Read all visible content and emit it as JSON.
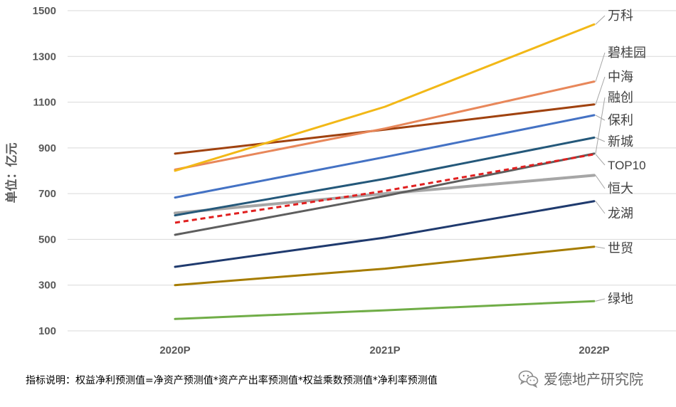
{
  "chart_data": {
    "type": "line",
    "ylabel": "单位：亿元",
    "ylim": [
      100,
      1500
    ],
    "yticks": [
      100,
      300,
      500,
      700,
      900,
      1100,
      1300,
      1500
    ],
    "categories": [
      "2020P",
      "2021P",
      "2022P"
    ],
    "grid": "horizontal",
    "legend": "inline labels at line ends",
    "series": [
      {
        "name": "万科",
        "values": [
          800,
          1080,
          1440
        ],
        "color": "#F2B817",
        "dash": false
      },
      {
        "name": "碧桂园",
        "values": [
          805,
          985,
          1190
        ],
        "color": "#E8875A",
        "dash": false
      },
      {
        "name": "中海",
        "values": [
          875,
          980,
          1090
        ],
        "color": "#A0420F",
        "dash": false
      },
      {
        "name": "融创",
        "values": [
          520,
          690,
          875
        ],
        "color": "#5E5E5E",
        "dash": false
      },
      {
        "name": "保利",
        "values": [
          683,
          860,
          1043
        ],
        "color": "#4472C4",
        "dash": false
      },
      {
        "name": "新城",
        "values": [
          605,
          765,
          945
        ],
        "color": "#24587A",
        "dash": false
      },
      {
        "name": "TOP10",
        "values": [
          573,
          712,
          872
        ],
        "color": "#E02020",
        "dash": true
      },
      {
        "name": "恒大",
        "values": [
          615,
          700,
          780
        ],
        "color": "#A6A6A6",
        "dash": false
      },
      {
        "name": "龙湖",
        "values": [
          380,
          508,
          667
        ],
        "color": "#1F3A6E",
        "dash": false
      },
      {
        "name": "世贸",
        "values": [
          300,
          372,
          468
        ],
        "color": "#A67C00",
        "dash": false
      },
      {
        "name": "绿地",
        "values": [
          152,
          190,
          230
        ],
        "color": "#70AD47",
        "dash": false
      }
    ]
  },
  "footnote": "指标说明：权益净利预测值=净资产预测值*资产产出率预测值*权益乘数预测值*净利率预测值",
  "brand": {
    "name": "爱德地产研究院",
    "icon": "wechat-icon"
  }
}
